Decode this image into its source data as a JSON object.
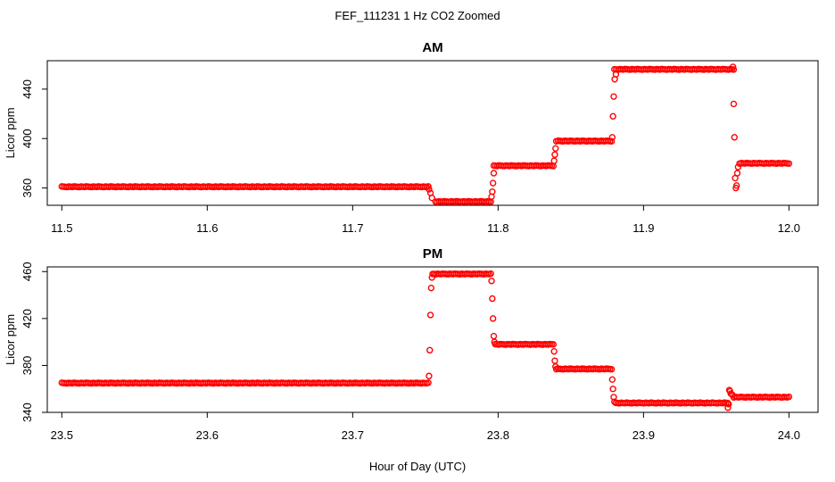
{
  "figure": {
    "title": "FEF_111231  1 Hz CO2 Zoomed",
    "xlabel": "Hour of Day (UTC)"
  },
  "chart_data": [
    {
      "type": "scatter",
      "title": "AM",
      "ylabel": "Licor ppm",
      "xlim": [
        11.49,
        12.02
      ],
      "ylim": [
        346,
        463
      ],
      "xticks": [
        "11.5",
        "11.6",
        "11.7",
        "11.8",
        "11.9",
        "12.0"
      ],
      "yticks": [
        "360",
        "400",
        "440"
      ],
      "color": "#ff0000",
      "marker": "open-circle",
      "grid": false,
      "segments": [
        {
          "x_start": 11.5,
          "x_end": 11.752,
          "y": 361
        },
        {
          "x_start": 11.757,
          "x_end": 11.795,
          "y": 349
        },
        {
          "x_start": 11.797,
          "x_end": 11.838,
          "y": 378
        },
        {
          "x_start": 11.84,
          "x_end": 11.878,
          "y": 398
        },
        {
          "x_start": 11.88,
          "x_end": 11.962,
          "y": 456
        },
        {
          "x_start": 11.966,
          "x_end": 12.0,
          "y": 380
        }
      ],
      "transitions": [
        {
          "x": [
            11.7525,
            11.7535,
            11.7545
          ],
          "y": [
            359,
            356,
            352
          ]
        },
        {
          "x": [
            11.7955,
            11.796,
            11.7965,
            11.797
          ],
          "y": [
            353,
            357,
            364,
            372
          ]
        },
        {
          "x": [
            11.8385,
            11.839,
            11.8395
          ],
          "y": [
            382,
            387,
            392
          ]
        },
        {
          "x": [
            11.8785,
            11.879,
            11.8795,
            11.8802,
            11.881
          ],
          "y": [
            401,
            418,
            434,
            448,
            452
          ]
        },
        {
          "x": [
            11.9615,
            11.962,
            11.9625,
            11.963,
            11.9635,
            11.964,
            11.9645,
            11.965
          ],
          "y": [
            458,
            428,
            401,
            368,
            360,
            362,
            372,
            377
          ]
        }
      ]
    },
    {
      "type": "scatter",
      "title": "PM",
      "ylabel": "Licor ppm",
      "xlim": [
        23.49,
        24.02
      ],
      "ylim": [
        340,
        464
      ],
      "xticks": [
        "23.5",
        "23.6",
        "23.7",
        "23.8",
        "23.9",
        "24.0"
      ],
      "yticks": [
        "340",
        "380",
        "420",
        "460"
      ],
      "color": "#ff0000",
      "marker": "open-circle",
      "grid": false,
      "segments": [
        {
          "x_start": 23.5,
          "x_end": 23.752,
          "y": 365
        },
        {
          "x_start": 23.756,
          "x_end": 23.795,
          "y": 458
        },
        {
          "x_start": 23.798,
          "x_end": 23.838,
          "y": 398
        },
        {
          "x_start": 23.84,
          "x_end": 23.878,
          "y": 377
        },
        {
          "x_start": 23.881,
          "x_end": 23.958,
          "y": 348
        },
        {
          "x_start": 23.962,
          "x_end": 24.0,
          "y": 353
        }
      ],
      "transitions": [
        {
          "x": [
            23.7525,
            23.753,
            23.7535,
            23.754,
            23.7545,
            23.755
          ],
          "y": [
            371,
            393,
            423,
            446,
            455,
            458
          ]
        },
        {
          "x": [
            23.7955,
            23.796,
            23.7965,
            23.797,
            23.7975
          ],
          "y": [
            452,
            437,
            420,
            405,
            400
          ]
        },
        {
          "x": [
            23.8385,
            23.839,
            23.8395
          ],
          "y": [
            392,
            384,
            379
          ]
        },
        {
          "x": [
            23.8785,
            23.879,
            23.8795,
            23.88
          ],
          "y": [
            368,
            360,
            353,
            349
          ]
        },
        {
          "x": [
            23.958,
            23.9585,
            23.959,
            23.9595,
            23.96,
            23.961
          ],
          "y": [
            344,
            347,
            359,
            358,
            356,
            355
          ]
        }
      ]
    }
  ]
}
